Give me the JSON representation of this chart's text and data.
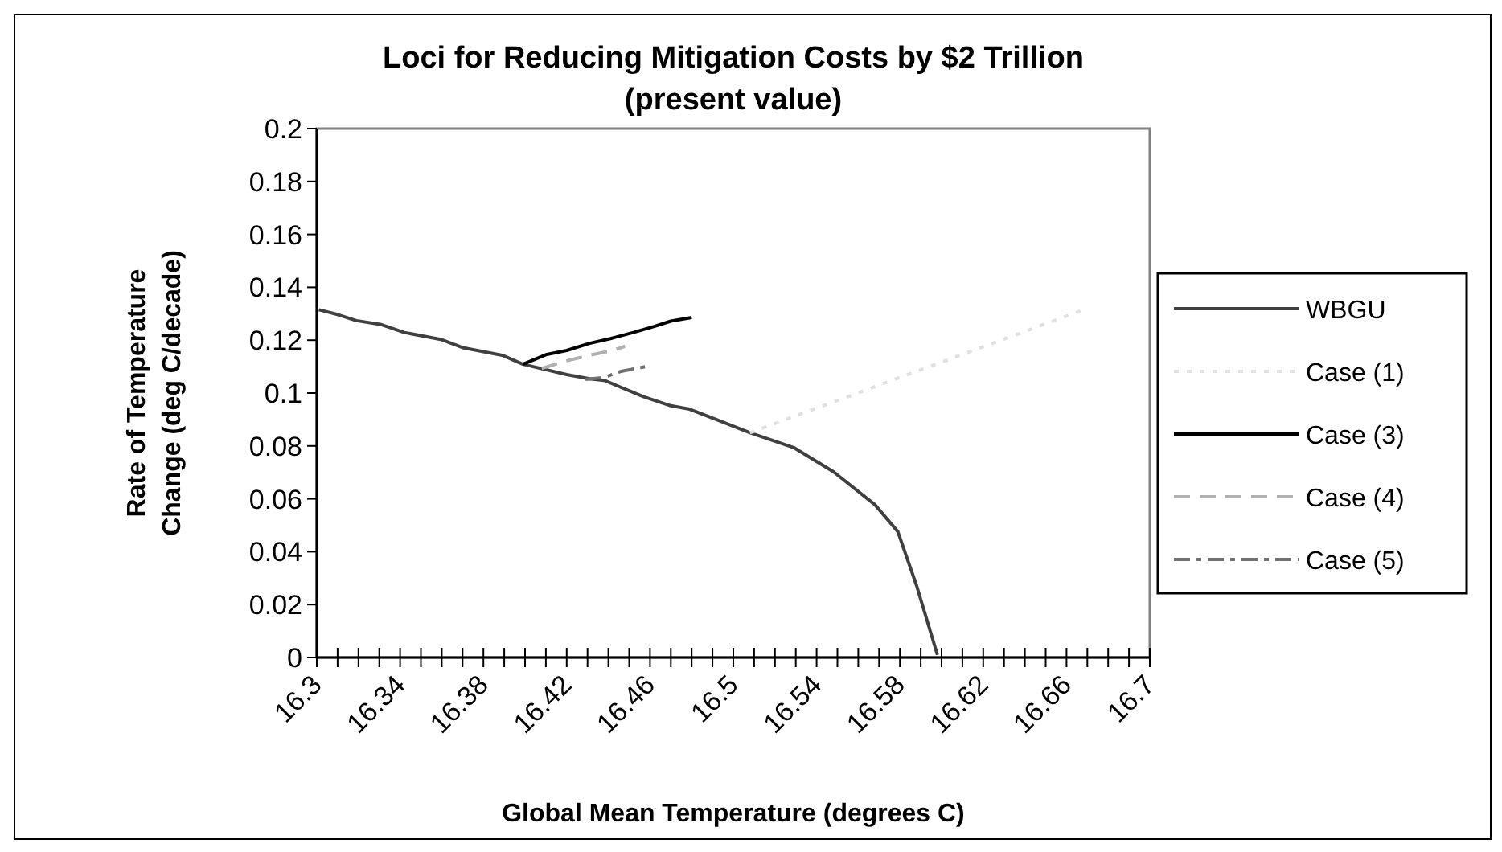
{
  "chart_data": {
    "type": "line",
    "title": "Loci for Reducing Mitigation Costs by $2 Trillion\n(present value)",
    "xlabel": "Global Mean Temperature (degrees C)",
    "ylabel": "Rate of Temperature\nChange (deg C/decade)",
    "xlim": [
      16.3,
      16.7
    ],
    "ylim": [
      0,
      0.2
    ],
    "xticks": [
      16.3,
      {
        "value": 16.31,
        "label": null
      },
      {
        "value": 16.32,
        "label": null
      },
      {
        "value": 16.33,
        "label": null
      },
      16.34,
      {
        "value": 16.35,
        "label": null
      },
      {
        "value": 16.36,
        "label": null
      },
      {
        "value": 16.37,
        "label": null
      },
      16.38,
      {
        "value": 16.39,
        "label": null
      },
      {
        "value": 16.4,
        "label": null
      },
      {
        "value": 16.41,
        "label": null
      },
      16.42,
      {
        "value": 16.43,
        "label": null
      },
      {
        "value": 16.44,
        "label": null
      },
      {
        "value": 16.45,
        "label": null
      },
      16.46,
      {
        "value": 16.47,
        "label": null
      },
      {
        "value": 16.48,
        "label": null
      },
      {
        "value": 16.49,
        "label": null
      },
      16.5,
      {
        "value": 16.51,
        "label": null
      },
      {
        "value": 16.52,
        "label": null
      },
      {
        "value": 16.53,
        "label": null
      },
      16.54,
      {
        "value": 16.55,
        "label": null
      },
      {
        "value": 16.56,
        "label": null
      },
      {
        "value": 16.57,
        "label": null
      },
      16.58,
      {
        "value": 16.59,
        "label": null
      },
      {
        "value": 16.6,
        "label": null
      },
      {
        "value": 16.61,
        "label": null
      },
      16.62,
      {
        "value": 16.63,
        "label": null
      },
      {
        "value": 16.64,
        "label": null
      },
      {
        "value": 16.65,
        "label": null
      },
      16.66,
      {
        "value": 16.67,
        "label": null
      },
      {
        "value": 16.68,
        "label": null
      },
      {
        "value": 16.69,
        "label": null
      },
      16.7
    ],
    "yticks": [
      0,
      0.02,
      0.04,
      0.06,
      0.08,
      0.1,
      0.12,
      0.14,
      0.16,
      0.18,
      0.2
    ],
    "grid": false,
    "legend": "right",
    "series": [
      {
        "name": "WBGU",
        "color": "#404040",
        "line_style": "solid",
        "x": [
          16.301,
          16.31,
          16.319,
          16.331,
          16.342,
          16.36,
          16.37,
          16.389,
          16.399,
          16.42,
          16.431,
          16.438,
          16.457,
          16.47,
          16.479,
          16.493,
          16.508,
          16.529,
          16.548,
          16.568,
          16.579,
          16.588,
          16.598
        ],
        "values": [
          0.1315,
          0.1297,
          0.1274,
          0.1259,
          0.1229,
          0.1202,
          0.1172,
          0.1143,
          0.1109,
          0.107,
          0.1054,
          0.1048,
          0.0986,
          0.0952,
          0.0939,
          0.0896,
          0.085,
          0.0794,
          0.0703,
          0.0578,
          0.0476,
          0.0272,
          0.001
        ]
      },
      {
        "name": "Case (1)",
        "color": "#e0e0e0",
        "line_style": "dotted",
        "x": [
          16.508,
          16.67
        ],
        "values": [
          0.085,
          0.132
        ]
      },
      {
        "name": "Case (3)",
        "color": "#000000",
        "line_style": "solid",
        "x": [
          16.399,
          16.41,
          16.42,
          16.431,
          16.441,
          16.452,
          16.462,
          16.47,
          16.48
        ],
        "values": [
          0.1109,
          0.1145,
          0.1161,
          0.1188,
          0.1206,
          0.1229,
          0.1252,
          0.1272,
          0.1286
        ]
      },
      {
        "name": "Case (4)",
        "color": "#b0b0b0",
        "line_style": "dashed",
        "x": [
          16.408,
          16.42,
          16.431,
          16.441,
          16.448
        ],
        "values": [
          0.1093,
          0.1122,
          0.1143,
          0.1159,
          0.1177
        ]
      },
      {
        "name": "Case (5)",
        "color": "#707070",
        "line_style": "dashdot",
        "x": [
          16.429,
          16.438,
          16.446,
          16.458
        ],
        "values": [
          0.1052,
          0.1059,
          0.1082,
          0.11
        ]
      }
    ]
  }
}
